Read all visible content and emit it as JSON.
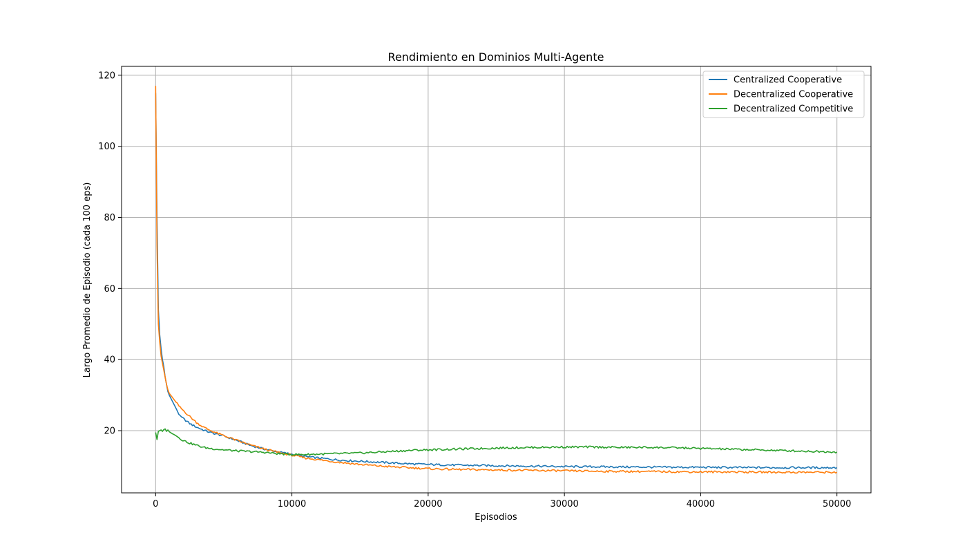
{
  "chart_data": {
    "type": "line",
    "title": "Rendimiento en Dominios Multi-Agente",
    "xlabel": "Episodios",
    "ylabel": "Largo Promedio de Episodio (cada 100 eps)",
    "xlim": [
      -2500,
      52500
    ],
    "ylim": [
      2.5,
      122.5
    ],
    "xticks": [
      0,
      10000,
      20000,
      30000,
      40000,
      50000
    ],
    "xtick_labels": [
      "0",
      "10000",
      "20000",
      "30000",
      "40000",
      "50000"
    ],
    "yticks": [
      20,
      40,
      60,
      80,
      100,
      120
    ],
    "ytick_labels": [
      "20",
      "40",
      "60",
      "80",
      "100",
      "120"
    ],
    "grid": true,
    "legend_position": "top-right",
    "series": [
      {
        "name": "Centralized Cooperative",
        "color": "#1f77b4",
        "x": [
          0,
          100,
          200,
          300,
          400,
          500,
          600,
          700,
          800,
          900,
          1000,
          1200,
          1400,
          1600,
          1800,
          2000,
          2500,
          3000,
          3500,
          4000,
          4500,
          5000,
          6000,
          7000,
          8000,
          9000,
          10000,
          11000,
          12000,
          13000,
          14000,
          15000,
          16000,
          17000,
          18000,
          19000,
          20000,
          22000,
          24000,
          26000,
          28000,
          30000,
          32000,
          34000,
          36000,
          38000,
          40000,
          42000,
          44000,
          46000,
          48000,
          50000
        ],
        "y": [
          115,
          80,
          54,
          47,
          43,
          40,
          38,
          35,
          33,
          31,
          30,
          28.5,
          27,
          25.5,
          24,
          23.5,
          22,
          21,
          20.2,
          19.5,
          19,
          18.5,
          17.2,
          15.8,
          14.8,
          14,
          13.4,
          12.7,
          12.3,
          11.9,
          11.6,
          11.4,
          11.2,
          11,
          10.8,
          10.6,
          10.5,
          10.3,
          10.2,
          10.1,
          10,
          9.9,
          9.85,
          9.8,
          9.75,
          9.7,
          9.7,
          9.65,
          9.6,
          9.6,
          9.6,
          9.6
        ]
      },
      {
        "name": "Decentralized Cooperative",
        "color": "#ff7f0e",
        "x": [
          0,
          100,
          200,
          300,
          400,
          500,
          600,
          700,
          800,
          900,
          1000,
          1200,
          1400,
          1600,
          1800,
          2000,
          2500,
          3000,
          3500,
          4000,
          4500,
          5000,
          6000,
          7000,
          8000,
          9000,
          10000,
          11000,
          12000,
          13000,
          14000,
          15000,
          16000,
          17000,
          18000,
          19000,
          20000,
          22000,
          24000,
          26000,
          28000,
          30000,
          32000,
          34000,
          36000,
          38000,
          40000,
          42000,
          44000,
          46000,
          48000,
          50000
        ],
        "y": [
          117,
          72,
          50,
          45,
          41,
          39,
          37,
          35,
          33,
          31.5,
          30.5,
          29.5,
          28.5,
          27.5,
          26.5,
          25.8,
          24,
          22.3,
          21,
          20.1,
          19.3,
          18.6,
          17.2,
          15.9,
          14.8,
          13.9,
          13.1,
          12.3,
          11.8,
          11.3,
          10.9,
          10.5,
          10.2,
          9.9,
          9.7,
          9.5,
          9.3,
          9.1,
          9,
          8.9,
          8.8,
          8.7,
          8.6,
          8.55,
          8.5,
          8.45,
          8.4,
          8.4,
          8.35,
          8.3,
          8.3,
          8.3
        ]
      },
      {
        "name": "Decentralized Competitive",
        "color": "#2ca02c",
        "x": [
          0,
          100,
          200,
          300,
          400,
          500,
          600,
          700,
          800,
          900,
          1000,
          1200,
          1400,
          1600,
          1800,
          2000,
          2500,
          3000,
          3500,
          4000,
          4500,
          5000,
          6000,
          7000,
          8000,
          9000,
          10000,
          11000,
          12000,
          13000,
          14000,
          15000,
          16000,
          17000,
          18000,
          19000,
          20000,
          22000,
          24000,
          26000,
          28000,
          30000,
          32000,
          34000,
          36000,
          38000,
          40000,
          42000,
          44000,
          46000,
          48000,
          50000
        ],
        "y": [
          19.5,
          17.5,
          19.8,
          20,
          20.2,
          19.8,
          20.3,
          20.5,
          19.8,
          20.2,
          19.7,
          19.2,
          18.8,
          18.3,
          17.8,
          17.3,
          16.5,
          15.9,
          15.3,
          15,
          14.8,
          14.6,
          14.3,
          14.1,
          13.9,
          13.5,
          13.3,
          13.3,
          13.4,
          13.5,
          13.6,
          13.7,
          13.9,
          14.1,
          14.3,
          14.5,
          14.6,
          14.8,
          15,
          15.2,
          15.3,
          15.4,
          15.4,
          15.3,
          15.3,
          15.2,
          15,
          14.8,
          14.6,
          14.4,
          14.2,
          14
        ]
      }
    ]
  }
}
